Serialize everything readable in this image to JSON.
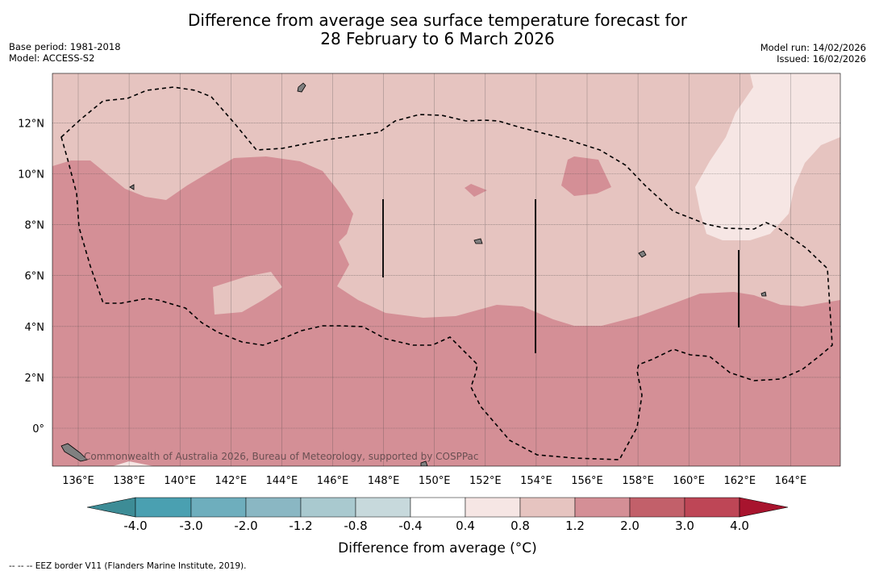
{
  "title": {
    "line1": "Difference from average sea surface temperature forecast for",
    "line2": "28 February to 6 March 2026"
  },
  "meta": {
    "base_period": "Base period: 1981-2018",
    "model": "Model: ACCESS-S2",
    "model_run": "Model run: 14/02/2026",
    "issued": "Issued: 16/02/2026"
  },
  "map": {
    "lon_labels": [
      "136°E",
      "138°E",
      "140°E",
      "142°E",
      "144°E",
      "146°E",
      "148°E",
      "150°E",
      "152°E",
      "154°E",
      "156°E",
      "158°E",
      "160°E",
      "162°E",
      "164°E"
    ],
    "lat_labels": [
      "12°N",
      "10°N",
      "8°N",
      "6°N",
      "4°N",
      "2°N",
      "0°"
    ],
    "attribution": "Commonwealth of Australia 2026, Bureau of Meteorology, supported by COSPPac",
    "colors": {
      "ocean_1_2_to_2_0": "#e6c4c0",
      "ocean_2_0_to_3_0": "#d48f96",
      "ocean_0_8_to_1_2_light": "#f6e6e4",
      "land": "#808080",
      "grid": "#444444",
      "eez": "#000000"
    }
  },
  "colorbar": {
    "title": "Difference from average (°C)",
    "ticks": [
      "-4.0",
      "-3.0",
      "-2.0",
      "-1.2",
      "-0.8",
      "-0.4",
      "0.4",
      "0.8",
      "1.2",
      "2.0",
      "3.0",
      "4.0"
    ],
    "bin_colors": [
      "#3d8c96",
      "#4aa0b1",
      "#6eaebd",
      "#8ab7c3",
      "#a9c9cf",
      "#c7d9dc",
      "#ffffff",
      "#f6e6e4",
      "#e6c4c0",
      "#d48f96",
      "#c2606a",
      "#be4656",
      "#a8142e"
    ]
  },
  "footnote": "--  --  -- EEZ border V11 (Flanders Marine Institute, 2019)."
}
